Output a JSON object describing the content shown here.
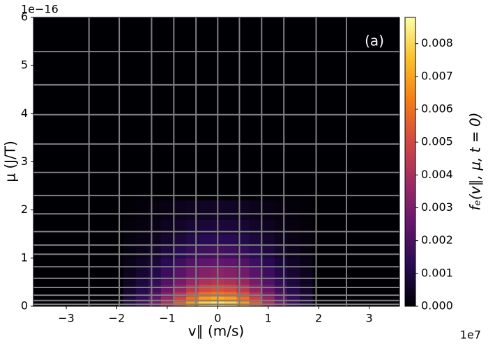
{
  "chart_data": {
    "type": "heatmap",
    "xlabel": "v∥ (m/s)",
    "ylabel": "μ (J/T)",
    "x_offset_label": "1e7",
    "y_offset_label": "1e−16",
    "annotation": "(a)",
    "colorbar_label": "fₑ(v∥, μ, t = 0)",
    "colormap": "inferno",
    "xlim": [
      -3.65,
      3.6
    ],
    "ylim": [
      0,
      6
    ],
    "clim": [
      0,
      0.0088
    ],
    "xticks": [
      {
        "value": -3,
        "label": "−3"
      },
      {
        "value": -2,
        "label": "−2"
      },
      {
        "value": -1,
        "label": "−1"
      },
      0,
      1,
      2,
      3
    ],
    "yticks": [
      0,
      1,
      2,
      3,
      4,
      5,
      6
    ],
    "cticks": [
      {
        "value": 0,
        "label": "0.000"
      },
      {
        "value": 0.001,
        "label": "0.001"
      },
      {
        "value": 0.002,
        "label": "0.002"
      },
      {
        "value": 0.003,
        "label": "0.003"
      },
      {
        "value": 0.004,
        "label": "0.004"
      },
      {
        "value": 0.005,
        "label": "0.005"
      },
      {
        "value": 0.006,
        "label": "0.006"
      },
      {
        "value": 0.007,
        "label": "0.007"
      },
      {
        "value": 0.008,
        "label": "0.008"
      }
    ],
    "grid_x": [
      -2.55,
      -1.95,
      -1.31,
      -0.87,
      -0.43,
      0,
      0.43,
      0.87,
      1.31,
      1.95,
      2.55
    ],
    "grid_y": [
      0.04,
      0.12,
      0.23,
      0.39,
      0.58,
      0.82,
      1.08,
      1.27,
      1.55,
      1.92,
      2.3,
      2.78,
      3.37,
      3.98,
      4.6,
      5.29
    ],
    "grid_color": "#808080",
    "x_edges": [
      -1.875,
      -1.625,
      -1.375,
      -1.125,
      -0.875,
      -0.625,
      -0.375,
      -0.125,
      0.125,
      0.375,
      0.625,
      0.875,
      1.125,
      1.375,
      1.625,
      1.875
    ],
    "y_edges": [
      0,
      0.1,
      0.2,
      0.3,
      0.45,
      0.6,
      0.8,
      1.0,
      1.25,
      1.5,
      1.8,
      2.2
    ],
    "z": [
      [
        0.00099,
        0.00173,
        0.00278,
        0.00411,
        0.00557,
        0.0069,
        0.00787,
        0.00821,
        0.00787,
        0.0069,
        0.00557,
        0.00411,
        0.00278,
        0.00173,
        0.00099
      ],
      [
        0.00086,
        0.00151,
        0.00242,
        0.00358,
        0.00485,
        0.00601,
        0.00685,
        0.00715,
        0.00685,
        0.00601,
        0.00485,
        0.00358,
        0.00242,
        0.00151,
        0.00086
      ],
      [
        0.00075,
        0.00131,
        0.00211,
        0.00312,
        0.00422,
        0.00523,
        0.00596,
        0.00622,
        0.00596,
        0.00523,
        0.00422,
        0.00312,
        0.00211,
        0.00131,
        0.00075
      ],
      [
        0.00063,
        0.0011,
        0.00177,
        0.00262,
        0.00355,
        0.0044,
        0.00501,
        0.00523,
        0.00501,
        0.0044,
        0.00355,
        0.00262,
        0.00177,
        0.0011,
        0.00063
      ],
      [
        0.00051,
        0.00089,
        0.00144,
        0.00212,
        0.00287,
        0.00357,
        0.00406,
        0.00424,
        0.00406,
        0.00357,
        0.00287,
        0.00212,
        0.00144,
        0.00089,
        0.00051
      ],
      [
        0.0004,
        0.0007,
        0.00113,
        0.00167,
        0.00226,
        0.0028,
        0.00319,
        0.00333,
        0.00319,
        0.0028,
        0.00226,
        0.00167,
        0.00113,
        0.0007,
        0.0004
      ],
      [
        0.0003,
        0.00053,
        0.00086,
        0.00127,
        0.00172,
        0.00213,
        0.00242,
        0.00253,
        0.00242,
        0.00213,
        0.00172,
        0.00127,
        0.00086,
        0.00053,
        0.0003
      ],
      [
        0.00022,
        0.00039,
        0.00063,
        0.00093,
        0.00125,
        0.00156,
        0.00177,
        0.00185,
        0.00177,
        0.00156,
        0.00125,
        0.00093,
        0.00063,
        0.00039,
        0.00022
      ],
      [
        0.00016,
        0.00027,
        0.00044,
        0.00065,
        0.00088,
        0.00109,
        0.00125,
        0.0013,
        0.00125,
        0.00109,
        0.00088,
        0.00065,
        0.00044,
        0.00027,
        0.00016
      ],
      [
        0.00011,
        0.00019,
        0.0003,
        0.00045,
        0.0006,
        0.00075,
        0.00085,
        0.00089,
        0.00085,
        0.00075,
        0.0006,
        0.00045,
        0.0003,
        0.00019,
        0.00011
      ],
      [
        7e-05,
        0.00012,
        0.00019,
        0.00028,
        0.00037,
        0.00046,
        0.00053,
        0.00055,
        0.00053,
        0.00046,
        0.00037,
        0.00028,
        0.00019,
        0.00012,
        7e-05
      ]
    ]
  }
}
